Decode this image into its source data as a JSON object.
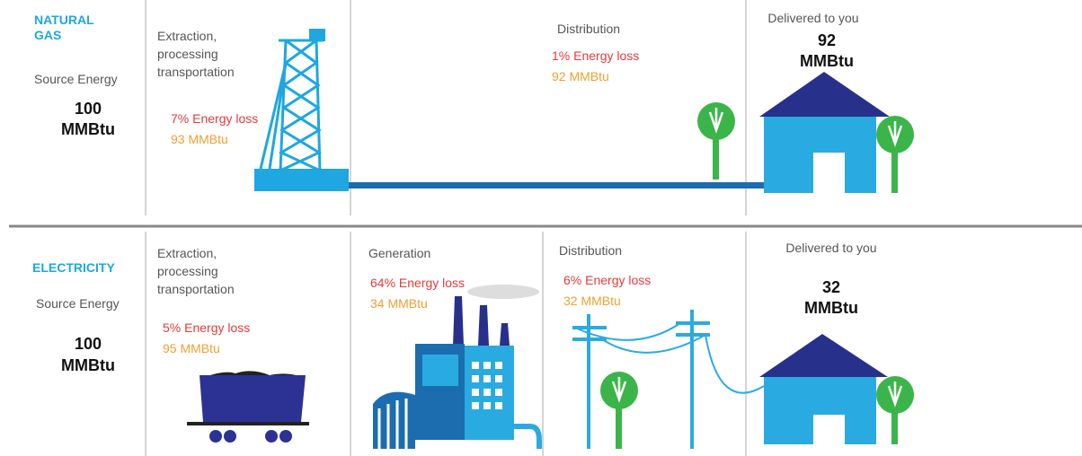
{
  "natural_gas": {
    "label": "NATURAL GAS",
    "source": {
      "label": "Source Energy",
      "amount": "100",
      "unit": "MMBtu"
    },
    "stages": [
      {
        "title": "Extraction, processing transportation",
        "loss": "7% Energy loss",
        "remaining": "93 MMBtu"
      },
      {
        "title": "Distribution",
        "loss": "1% Energy loss",
        "remaining": "92 MMBtu"
      }
    ],
    "delivered": {
      "label": "Delivered to you",
      "amount": "92",
      "unit": "MMBtu"
    }
  },
  "electricity": {
    "label": "ELECTRICITY",
    "source": {
      "label": "Source Energy",
      "amount": "100",
      "unit": "MMBtu"
    },
    "stages": [
      {
        "title": "Extraction, processing transportation",
        "loss": "5% Energy loss",
        "remaining": "95 MMBtu"
      },
      {
        "title": "Generation",
        "loss": "64% Energy loss",
        "remaining": "34 MMBtu"
      },
      {
        "title": "Distribution",
        "loss": "6% Energy loss",
        "remaining": "32 MMBtu"
      }
    ],
    "delivered": {
      "label": "Delivered to you",
      "amount": "32",
      "unit": "MMBtu"
    }
  }
}
